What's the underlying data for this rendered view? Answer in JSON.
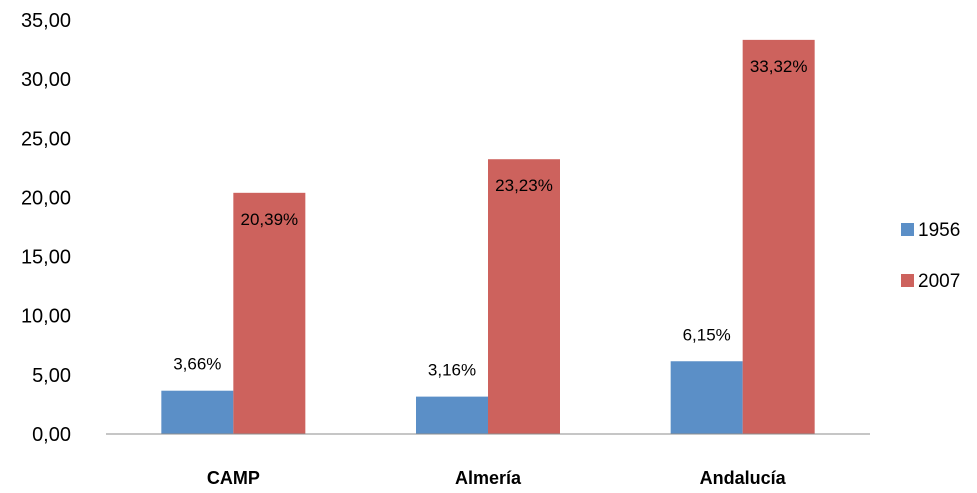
{
  "chart_data": {
    "type": "bar",
    "categories": [
      "CAMP",
      "Almería",
      "Andalucía"
    ],
    "series": [
      {
        "name": "1956",
        "values": [
          3.66,
          3.16,
          6.15
        ],
        "labels": [
          "3,66%",
          "3,16%",
          "6,15%"
        ],
        "color": "#5b8fc7"
      },
      {
        "name": "2007",
        "values": [
          20.39,
          23.23,
          33.32
        ],
        "labels": [
          "20,39%",
          "23,23%",
          "33,32%"
        ],
        "color": "#cd625d"
      }
    ],
    "yticks": [
      "0,00",
      "5,00",
      "10,00",
      "15,00",
      "20,00",
      "25,00",
      "30,00",
      "35,00"
    ],
    "ylim": [
      0,
      35
    ],
    "grid": false,
    "legend_position": "right"
  }
}
